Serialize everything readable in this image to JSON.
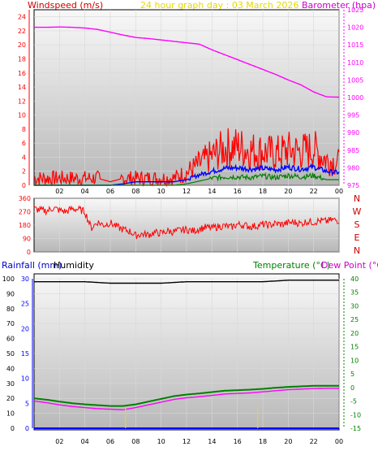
{
  "header": {
    "windspeed_label": "Windspeed (m/s)",
    "graph_title": "24 hour graph day : 03 March 2026",
    "barometer_label": "Barometer (hpa)"
  },
  "labels": {
    "rainfall": "Rainfall (mm)",
    "humidity": "Humidity",
    "temperature": "Temperature (°C)",
    "dewpoint": "Dew Point (°C)"
  },
  "colors": {
    "windspeed": "#ff0000",
    "title": "#ffff00",
    "barometer": "#ff00ff",
    "wind_avg": "#0000ff",
    "wind_low": "#008000",
    "direction": "#ff0000",
    "rain": "#0000ff",
    "humidity": "#000000",
    "temperature": "#008000",
    "dewpoint": "#ff00ff",
    "plot_bg_top": "#f8f8f8",
    "plot_bg_bottom": "#b8b8b8"
  },
  "chart_data": [
    {
      "type": "line",
      "name": "wind-barometer",
      "title": "24 hour graph day : 03 March 2026",
      "xlabel": "",
      "x_ticks": [
        "02",
        "04",
        "06",
        "08",
        "10",
        "12",
        "14",
        "16",
        "18",
        "20",
        "22",
        "00"
      ],
      "y_left": {
        "label": "Windspeed (m/s)",
        "ticks": [
          0,
          2,
          4,
          6,
          8,
          10,
          12,
          14,
          16,
          18,
          20,
          22,
          24
        ],
        "range": [
          0,
          25
        ]
      },
      "y_right": {
        "label": "Barometer (hpa)",
        "ticks": [
          975,
          980,
          985,
          990,
          995,
          1000,
          1005,
          1010,
          1015,
          1020,
          1025
        ],
        "range": [
          975,
          1025
        ]
      },
      "series": [
        {
          "name": "Barometer (hpa)",
          "axis": "right",
          "color": "#ff00ff",
          "x": [
            0,
            1,
            2,
            3,
            4,
            5,
            6,
            7,
            8,
            9,
            10,
            11,
            12,
            13,
            14,
            15,
            16,
            17,
            18,
            19,
            20,
            21,
            22,
            23,
            24
          ],
          "y": [
            1020.0,
            1020.0,
            1020.1,
            1020.0,
            1019.8,
            1019.4,
            1018.6,
            1017.8,
            1017.1,
            1016.8,
            1016.4,
            1016.0,
            1015.6,
            1015.2,
            1013.6,
            1012.2,
            1010.8,
            1009.4,
            1008.0,
            1006.6,
            1005.0,
            1003.6,
            1001.6,
            1000.2,
            1000.1
          ]
        },
        {
          "name": "Wind gust (m/s)",
          "axis": "left",
          "color": "#ff0000",
          "x": [
            0,
            1,
            2,
            3,
            4,
            5,
            6,
            7,
            8,
            9,
            10,
            11,
            12,
            13,
            14,
            15,
            16,
            17,
            18,
            19,
            20,
            21,
            22,
            23,
            24
          ],
          "y": [
            1.0,
            1.0,
            1.0,
            1.0,
            1.0,
            1.0,
            0.5,
            1.0,
            1.0,
            1.0,
            1.0,
            1.0,
            1.8,
            3.0,
            4.2,
            5.3,
            5.5,
            5.0,
            4.8,
            4.5,
            5.0,
            4.8,
            5.2,
            3.6,
            3.2
          ]
        },
        {
          "name": "Wind average (m/s)",
          "axis": "left",
          "color": "#0000ff",
          "x": [
            0,
            1,
            2,
            3,
            4,
            5,
            6,
            7,
            8,
            9,
            10,
            11,
            12,
            13,
            14,
            15,
            16,
            17,
            18,
            19,
            20,
            21,
            22,
            23,
            24
          ],
          "y": [
            0.0,
            0.0,
            0.0,
            0.0,
            0.0,
            0.0,
            0.0,
            0.2,
            0.5,
            0.5,
            0.5,
            0.5,
            0.8,
            1.5,
            2.0,
            2.4,
            2.5,
            2.3,
            2.4,
            2.2,
            2.6,
            2.3,
            2.6,
            2.0,
            1.8
          ]
        },
        {
          "name": "Wind low (m/s)",
          "axis": "left",
          "color": "#008000",
          "x": [
            0,
            1,
            2,
            3,
            4,
            5,
            6,
            7,
            8,
            9,
            10,
            11,
            12,
            13,
            14,
            15,
            16,
            17,
            18,
            19,
            20,
            21,
            22,
            23,
            24
          ],
          "y": [
            0.0,
            0.0,
            0.0,
            0.0,
            0.0,
            0.0,
            0.0,
            0.0,
            0.0,
            0.0,
            0.0,
            0.0,
            0.2,
            0.6,
            1.0,
            1.2,
            1.2,
            1.1,
            1.3,
            1.1,
            1.4,
            1.2,
            1.4,
            0.8,
            0.8
          ]
        }
      ]
    },
    {
      "type": "line",
      "name": "wind-direction",
      "x_ticks": [],
      "y_left": {
        "ticks": [
          0,
          90,
          180,
          270,
          360
        ],
        "range": [
          0,
          360
        ]
      },
      "y_right": {
        "ticks": [
          "N",
          "W",
          "S",
          "E",
          "N"
        ]
      },
      "series": [
        {
          "name": "Wind direction (°)",
          "color": "#ff0000",
          "x": [
            0,
            0.5,
            1,
            1.5,
            2,
            2.5,
            3,
            3.5,
            4,
            4.5,
            5,
            5.5,
            6,
            6.5,
            7,
            7.5,
            8,
            8.5,
            9,
            9.5,
            10,
            10.5,
            11,
            11.5,
            12,
            12.5,
            13,
            13.5,
            14,
            14.5,
            15,
            15.5,
            16,
            16.5,
            17,
            17.5,
            18,
            18.5,
            19,
            19.5,
            20,
            20.5,
            21,
            21.5,
            22,
            22.5,
            23,
            23.5,
            24
          ],
          "y": [
            290,
            280,
            275,
            295,
            280,
            270,
            290,
            285,
            270,
            160,
            200,
            180,
            195,
            170,
            150,
            140,
            110,
            120,
            115,
            130,
            125,
            140,
            135,
            145,
            150,
            140,
            155,
            165,
            160,
            170,
            175,
            165,
            185,
            180,
            170,
            175,
            185,
            180,
            190,
            185,
            195,
            200,
            190,
            205,
            200,
            210,
            205,
            215,
            210
          ]
        }
      ]
    },
    {
      "type": "line",
      "name": "rain-humidity-temperature",
      "x_ticks": [
        "02",
        "04",
        "06",
        "08",
        "10",
        "12",
        "14",
        "16",
        "18",
        "20",
        "22",
        "00"
      ],
      "y_left": {
        "label": "Rainfall (mm)  Humidity",
        "ticks_humidity": [
          0,
          10,
          20,
          30,
          40,
          50,
          60,
          70,
          80,
          90,
          100
        ],
        "ticks_rain": [
          0,
          5,
          10,
          15,
          20,
          25,
          30
        ],
        "range": [
          0,
          100
        ]
      },
      "y_right": {
        "label": "Temperature (°C) Dew Point (°C)",
        "ticks": [
          -15,
          -10,
          -5,
          0,
          5,
          10,
          15,
          20,
          25,
          30,
          35,
          40
        ],
        "range": [
          -15,
          40
        ]
      },
      "series": [
        {
          "name": "Humidity",
          "color": "#000000",
          "x": [
            0,
            2,
            4,
            6,
            8,
            10,
            12,
            14,
            16,
            18,
            20,
            22,
            24
          ],
          "y": [
            98,
            98,
            98,
            97,
            97,
            97,
            98,
            98,
            98,
            98,
            99,
            99,
            99
          ]
        },
        {
          "name": "Temperature (°C)",
          "color": "#008000",
          "x": [
            0,
            1,
            2,
            3,
            4,
            5,
            6,
            7,
            8,
            9,
            10,
            11,
            12,
            13,
            14,
            15,
            16,
            17,
            18,
            19,
            20,
            21,
            22,
            23,
            24
          ],
          "y": [
            -4,
            -4.5,
            -5.2,
            -5.8,
            -6.2,
            -6.5,
            -6.8,
            -6.8,
            -6.2,
            -5.2,
            -4.2,
            -3.2,
            -2.6,
            -2.2,
            -1.7,
            -1.2,
            -1.0,
            -0.8,
            -0.5,
            -0.1,
            0.2,
            0.4,
            0.6,
            0.6,
            0.6
          ]
        },
        {
          "name": "Dew Point (°C)",
          "color": "#ff00ff",
          "x": [
            0,
            1,
            2,
            3,
            4,
            5,
            6,
            7,
            8,
            9,
            10,
            11,
            12,
            13,
            14,
            15,
            16,
            17,
            18,
            19,
            20,
            21,
            22,
            23,
            24
          ],
          "y": [
            -5,
            -5.6,
            -6.4,
            -7.0,
            -7.4,
            -7.8,
            -8.0,
            -8.2,
            -7.4,
            -6.4,
            -5.4,
            -4.4,
            -3.8,
            -3.4,
            -2.9,
            -2.4,
            -2.2,
            -2.0,
            -1.6,
            -1.2,
            -0.8,
            -0.6,
            -0.4,
            -0.3,
            -0.3
          ]
        },
        {
          "name": "Rainfall (mm)",
          "color": "#0000ff",
          "x": [
            0,
            24
          ],
          "y": [
            0,
            0
          ]
        },
        {
          "name": "Rain rate marks",
          "color": "#ffff00",
          "x": [
            7.2,
            17.6
          ],
          "y": [
            2.2,
            2.5
          ]
        }
      ]
    }
  ]
}
